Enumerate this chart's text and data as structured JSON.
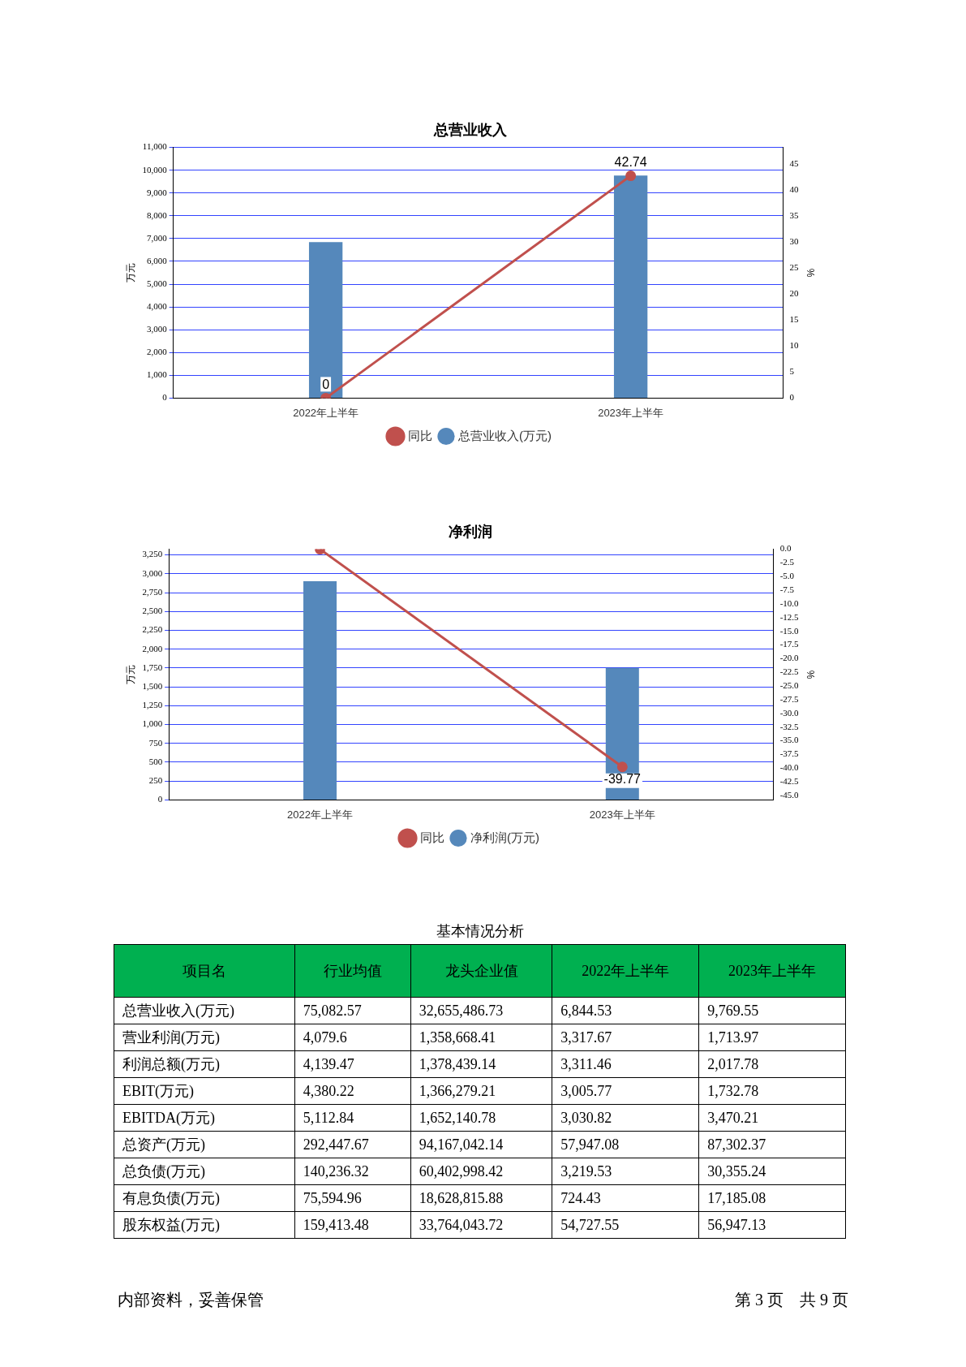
{
  "chart_data": [
    {
      "type": "bar",
      "title": "总营业收入",
      "categories": [
        "2022年上半年",
        "2023年上半年"
      ],
      "ylabel": "万元",
      "y2label": "%",
      "series": [
        {
          "name": "总营业收入(万元)",
          "type": "bar",
          "color": "#5588bb",
          "values": [
            6845,
            9770
          ]
        },
        {
          "name": "同比",
          "type": "line",
          "axis": "y2",
          "color": "#c0504d",
          "values": [
            0,
            42.74
          ],
          "value_labels": [
            "0",
            "42.74"
          ]
        }
      ],
      "ylim": [
        0,
        11000
      ],
      "yticks": [
        0,
        {
          "value": 1000,
          "label": "1,000"
        },
        {
          "value": 2000,
          "label": "2,000"
        },
        {
          "value": 3000,
          "label": "3,000"
        },
        {
          "value": 4000,
          "label": "4,000"
        },
        {
          "value": 5000,
          "label": "5,000"
        },
        {
          "value": 6000,
          "label": "6,000"
        },
        {
          "value": 7000,
          "label": "7,000"
        },
        {
          "value": 8000,
          "label": "8,000"
        },
        {
          "value": 9000,
          "label": "9,000"
        },
        {
          "value": 10000,
          "label": "10,000"
        },
        {
          "value": 11000,
          "label": "11,000"
        }
      ],
      "y2lim": [
        0,
        48.2
      ],
      "y2ticks": [
        0,
        5,
        10,
        15,
        20,
        25,
        30,
        35,
        40,
        45
      ],
      "grid": "y",
      "legend": "bottom",
      "marker": "circle",
      "line_style": "solid"
    },
    {
      "type": "bar",
      "title": "净利润",
      "categories": [
        "2022年上半年",
        "2023年上半年"
      ],
      "ylabel": "万元",
      "y2label": "%",
      "series": [
        {
          "name": "净利润(万元)",
          "type": "bar",
          "color": "#5588bb",
          "values": [
            2900,
            1750
          ]
        },
        {
          "name": "同比",
          "type": "line",
          "axis": "y2",
          "color": "#c0504d",
          "values": [
            0,
            -39.77
          ],
          "value_labels": [
            null,
            "-39.77"
          ]
        }
      ],
      "ylim": [
        0,
        3325
      ],
      "yticks": [
        0,
        250,
        500,
        750,
        {
          "value": 1000,
          "label": "1,000"
        },
        {
          "value": 1250,
          "label": "1,250"
        },
        {
          "value": 1500,
          "label": "1,500"
        },
        {
          "value": 1750,
          "label": "1,750"
        },
        {
          "value": 2000,
          "label": "2,000"
        },
        {
          "value": 2250,
          "label": "2,250"
        },
        {
          "value": 2500,
          "label": "2,500"
        },
        {
          "value": 2750,
          "label": "2,750"
        },
        {
          "value": 3000,
          "label": "3,000"
        },
        {
          "value": 3250,
          "label": "3,250"
        }
      ],
      "y2lim": [
        -45.8,
        0
      ],
      "y2ticks": [
        {
          "value": 0,
          "label": "0.0"
        },
        {
          "value": -2.5,
          "label": "-2.5"
        },
        {
          "value": -5,
          "label": "-5.0"
        },
        {
          "value": -7.5,
          "label": "-7.5"
        },
        {
          "value": -10,
          "label": "-10.0"
        },
        {
          "value": -12.5,
          "label": "-12.5"
        },
        {
          "value": -15,
          "label": "-15.0"
        },
        {
          "value": -17.5,
          "label": "-17.5"
        },
        {
          "value": -20,
          "label": "-20.0"
        },
        {
          "value": -22.5,
          "label": "-22.5"
        },
        {
          "value": -25,
          "label": "-25.0"
        },
        {
          "value": -27.5,
          "label": "-27.5"
        },
        {
          "value": -30,
          "label": "-30.0"
        },
        {
          "value": -32.5,
          "label": "-32.5"
        },
        {
          "value": -35,
          "label": "-35.0"
        },
        {
          "value": -37.5,
          "label": "-37.5"
        },
        {
          "value": -40,
          "label": "-40.0"
        },
        {
          "value": -42.5,
          "label": "-42.5"
        },
        {
          "value": -45,
          "label": "-45.0"
        }
      ],
      "grid": "y",
      "legend": "bottom",
      "marker": "circle",
      "line_style": "solid"
    },
    {
      "type": "other",
      "title": "基本情况分析",
      "color": "#00b050",
      "categories": [
        "项目名",
        "行业均值",
        "龙头企业值",
        "2022年上半年",
        "2023年上半年"
      ],
      "y_categories": [
        "总营业收入(万元)",
        "营业利润(万元)",
        "利润总额(万元)",
        "EBIT(万元)",
        "EBITDA(万元)",
        "总资产(万元)",
        "总负债(万元)",
        "有息负债(万元)",
        "股东权益(万元)"
      ],
      "cell_labels": [
        [
          "75,082.57",
          "32,655,486.73",
          "6,844.53",
          "9,769.55"
        ],
        [
          "4,079.6",
          "1,358,668.41",
          "3,317.67",
          "1,713.97"
        ],
        [
          "4,139.47",
          "1,378,439.14",
          "3,311.46",
          "2,017.78"
        ],
        [
          "4,380.22",
          "1,366,279.21",
          "3,005.77",
          "1,732.78"
        ],
        [
          "5,112.84",
          "1,652,140.78",
          "3,030.82",
          "3,470.21"
        ],
        [
          "292,447.67",
          "94,167,042.14",
          "57,947.08",
          "87,302.37"
        ],
        [
          "140,236.32",
          "60,402,998.42",
          "3,219.53",
          "30,355.24"
        ],
        [
          "75,594.96",
          "18,628,815.88",
          "724.43",
          "17,185.08"
        ],
        [
          "159,413.48",
          "33,764,043.72",
          "54,727.55",
          "56,947.13"
        ]
      ],
      "annotations": [
        "内部资料，妥善保管",
        "第 3 页　共 9 页"
      ]
    }
  ]
}
